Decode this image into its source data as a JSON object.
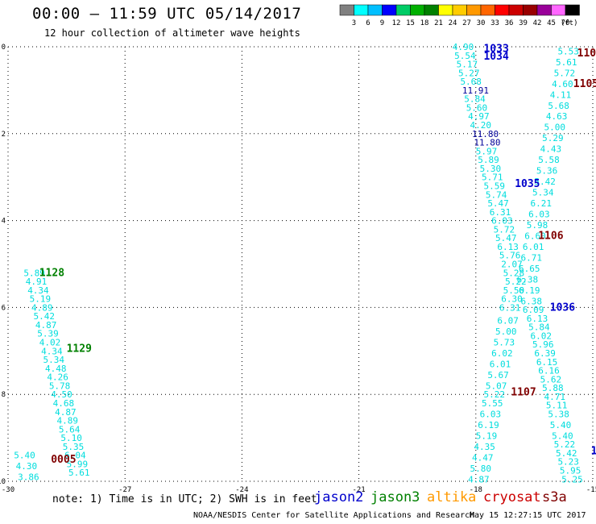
{
  "header": {
    "title": "00:00 – 11:59 UTC 05/14/2017",
    "subtitle": "12 hour collection of altimeter wave heights"
  },
  "legend_scale": {
    "ticks": [
      "3",
      "6",
      "9",
      "12",
      "15",
      "18",
      "21",
      "24",
      "27",
      "30",
      "33",
      "36",
      "39",
      "42",
      "45",
      "70"
    ],
    "unit": "(ft)",
    "colors": [
      "#808080",
      "#00ffff",
      "#00bfff",
      "#0000ff",
      "#00cc66",
      "#00b000",
      "#008000",
      "#ffff00",
      "#ffcc00",
      "#ff9900",
      "#ff6600",
      "#ff0000",
      "#cc0000",
      "#990000",
      "#990099",
      "#ff66ff",
      "#000000"
    ]
  },
  "footer": {
    "note": "note:  1) Time is in UTC;  2) SWH is in feet",
    "credit": "NOAA/NESDIS Center for Satellite Applications and Research",
    "timestamp": "May 15 12:27:15 UTC 2017"
  },
  "satellites": [
    {
      "name": "jason2",
      "color": "#0000cc"
    },
    {
      "name": "jason3",
      "color": "#008000"
    },
    {
      "name": "altika",
      "color": "#ff9900"
    },
    {
      "name": "cryosat",
      "color": "#cc0000"
    },
    {
      "name": "s3a",
      "color": "#800000"
    }
  ],
  "chart_data": {
    "type": "scatter",
    "xlim": [
      -30,
      -15
    ],
    "ylim": [
      -10,
      0
    ],
    "x_ticks": [
      "-30",
      "-27",
      "-24",
      "-21",
      "-18",
      "-15"
    ],
    "y_ticks": [
      "0",
      "-2",
      "-4",
      "-6",
      "-8",
      "-10"
    ],
    "grid": true,
    "value_color": "#00dddd",
    "value_color_large": "#000099",
    "track_labels": [
      {
        "text": "1033",
        "x": -17.8,
        "y": -0.05,
        "color": "#0000cc"
      },
      {
        "text": "1034",
        "x": -17.8,
        "y": -0.22,
        "color": "#0000cc"
      },
      {
        "text": "1035",
        "x": -17.0,
        "y": -3.15,
        "color": "#0000cc"
      },
      {
        "text": "1036",
        "x": -16.1,
        "y": -6.0,
        "color": "#0000cc"
      },
      {
        "text": "110",
        "x": -15.4,
        "y": -0.15,
        "color": "#800000"
      },
      {
        "text": "1105",
        "x": -15.5,
        "y": -0.85,
        "color": "#800000"
      },
      {
        "text": "1106",
        "x": -16.4,
        "y": -4.35,
        "color": "#800000"
      },
      {
        "text": "1107",
        "x": -17.1,
        "y": -7.95,
        "color": "#800000"
      },
      {
        "text": "0005",
        "x": -28.9,
        "y": -9.5,
        "color": "#800000"
      },
      {
        "text": "1128",
        "x": -29.2,
        "y": -5.2,
        "color": "#008000"
      },
      {
        "text": "1129",
        "x": -28.5,
        "y": -6.95,
        "color": "#008000"
      },
      {
        "text": "1-",
        "x": -15.05,
        "y": -9.3,
        "color": "#0000cc"
      }
    ],
    "series": [
      {
        "values": [
          {
            "x": -18.6,
            "y": 0.0,
            "v": "4.90"
          },
          {
            "x": -18.55,
            "y": -0.2,
            "v": "5.54"
          },
          {
            "x": -18.5,
            "y": -0.4,
            "v": "5.17"
          },
          {
            "x": -18.45,
            "y": -0.6,
            "v": "5.27"
          },
          {
            "x": -18.4,
            "y": -0.8,
            "v": "5.68"
          },
          {
            "x": -18.35,
            "y": -1.0,
            "v": "11.91"
          },
          {
            "x": -18.3,
            "y": -1.2,
            "v": "5.84"
          },
          {
            "x": -18.25,
            "y": -1.4,
            "v": "5.60"
          },
          {
            "x": -18.2,
            "y": -1.6,
            "v": "4.97"
          },
          {
            "x": -18.15,
            "y": -1.8,
            "v": "4.20"
          },
          {
            "x": -18.1,
            "y": -2.0,
            "v": "11.80"
          },
          {
            "x": -18.05,
            "y": -2.2,
            "v": "11.80"
          },
          {
            "x": -18.0,
            "y": -2.4,
            "v": "5.97"
          },
          {
            "x": -17.95,
            "y": -2.6,
            "v": "5.89"
          },
          {
            "x": -17.9,
            "y": -2.8,
            "v": "5.30"
          },
          {
            "x": -17.85,
            "y": -3.0,
            "v": "5.71"
          },
          {
            "x": -17.8,
            "y": -3.2,
            "v": "5.59"
          },
          {
            "x": -17.75,
            "y": -3.4,
            "v": "5.74"
          },
          {
            "x": -17.7,
            "y": -3.6,
            "v": "5.47"
          },
          {
            "x": -17.65,
            "y": -3.8,
            "v": "6.31"
          },
          {
            "x": -17.6,
            "y": -4.0,
            "v": "6.03"
          },
          {
            "x": -17.55,
            "y": -4.2,
            "v": "5.72"
          },
          {
            "x": -17.5,
            "y": -4.4,
            "v": "5.47"
          },
          {
            "x": -17.45,
            "y": -4.6,
            "v": "6.13"
          },
          {
            "x": -17.4,
            "y": -4.8,
            "v": "5.76"
          },
          {
            "x": -17.35,
            "y": -5.0,
            "v": "2.07"
          },
          {
            "x": -17.3,
            "y": -5.2,
            "v": "5.28"
          },
          {
            "x": -17.25,
            "y": -5.4,
            "v": "5.22"
          },
          {
            "x": -17.3,
            "y": -5.6,
            "v": "5.50"
          },
          {
            "x": -17.35,
            "y": -5.8,
            "v": "6.30"
          },
          {
            "x": -17.4,
            "y": -6.0,
            "v": "6.31"
          },
          {
            "x": -17.45,
            "y": -6.3,
            "v": "6.07"
          },
          {
            "x": -17.5,
            "y": -6.55,
            "v": "5.00"
          },
          {
            "x": -17.55,
            "y": -6.8,
            "v": "5.73"
          },
          {
            "x": -17.6,
            "y": -7.05,
            "v": "6.02"
          },
          {
            "x": -17.65,
            "y": -7.3,
            "v": "6.01"
          },
          {
            "x": -17.7,
            "y": -7.55,
            "v": "5.67"
          },
          {
            "x": -17.75,
            "y": -7.8,
            "v": "5.07"
          },
          {
            "x": -17.8,
            "y": -8.0,
            "v": "5.22"
          },
          {
            "x": -17.85,
            "y": -8.2,
            "v": "5.55"
          },
          {
            "x": -17.9,
            "y": -8.45,
            "v": "6.03"
          },
          {
            "x": -17.95,
            "y": -8.7,
            "v": "6.19"
          },
          {
            "x": -18.0,
            "y": -8.95,
            "v": "5.19"
          },
          {
            "x": -18.05,
            "y": -9.2,
            "v": "4.35"
          },
          {
            "x": -18.1,
            "y": -9.45,
            "v": "4.47"
          },
          {
            "x": -18.15,
            "y": -9.7,
            "v": "5.80"
          },
          {
            "x": -18.2,
            "y": -9.95,
            "v": "4.87"
          }
        ]
      },
      {
        "values": [
          {
            "x": -15.9,
            "y": -0.1,
            "v": "5.53"
          },
          {
            "x": -15.95,
            "y": -0.35,
            "v": "5.61"
          },
          {
            "x": -16.0,
            "y": -0.6,
            "v": "5.72"
          },
          {
            "x": -16.05,
            "y": -0.85,
            "v": "4.60"
          },
          {
            "x": -16.1,
            "y": -1.1,
            "v": "4.11"
          },
          {
            "x": -16.15,
            "y": -1.35,
            "v": "5.68"
          },
          {
            "x": -16.2,
            "y": -1.6,
            "v": "4.63"
          },
          {
            "x": -16.25,
            "y": -1.85,
            "v": "5.00"
          },
          {
            "x": -16.3,
            "y": -2.1,
            "v": "5.29"
          },
          {
            "x": -16.35,
            "y": -2.35,
            "v": "4.43"
          },
          {
            "x": -16.4,
            "y": -2.6,
            "v": "5.58"
          },
          {
            "x": -16.45,
            "y": -2.85,
            "v": "5.36"
          },
          {
            "x": -16.5,
            "y": -3.1,
            "v": "5.42"
          },
          {
            "x": -16.55,
            "y": -3.35,
            "v": "5.34"
          },
          {
            "x": -16.6,
            "y": -3.6,
            "v": "6.21"
          },
          {
            "x": -16.65,
            "y": -3.85,
            "v": "6.03"
          },
          {
            "x": -16.7,
            "y": -4.1,
            "v": "5.98"
          },
          {
            "x": -16.75,
            "y": -4.35,
            "v": "6.60"
          },
          {
            "x": -16.8,
            "y": -4.6,
            "v": "6.01"
          },
          {
            "x": -16.85,
            "y": -4.85,
            "v": "6.71"
          },
          {
            "x": -16.9,
            "y": -5.1,
            "v": "6.65"
          },
          {
            "x": -16.95,
            "y": -5.35,
            "v": "6.38"
          },
          {
            "x": -16.9,
            "y": -5.6,
            "v": "6.19"
          },
          {
            "x": -16.85,
            "y": -5.85,
            "v": "6.38"
          },
          {
            "x": -16.8,
            "y": -6.05,
            "v": "6.09"
          },
          {
            "x": -16.7,
            "y": -6.25,
            "v": "6.13"
          },
          {
            "x": -16.65,
            "y": -6.45,
            "v": "5.84"
          },
          {
            "x": -16.6,
            "y": -6.65,
            "v": "6.02"
          },
          {
            "x": -16.55,
            "y": -6.85,
            "v": "5.96"
          },
          {
            "x": -16.5,
            "y": -7.05,
            "v": "6.39"
          },
          {
            "x": -16.45,
            "y": -7.25,
            "v": "6.15"
          },
          {
            "x": -16.4,
            "y": -7.45,
            "v": "6.16"
          },
          {
            "x": -16.35,
            "y": -7.65,
            "v": "5.62"
          },
          {
            "x": -16.3,
            "y": -7.85,
            "v": "5.88"
          },
          {
            "x": -16.25,
            "y": -8.05,
            "v": "4.71"
          },
          {
            "x": -16.2,
            "y": -8.25,
            "v": "5.11"
          },
          {
            "x": -16.15,
            "y": -8.45,
            "v": "5.38"
          },
          {
            "x": -16.1,
            "y": -8.7,
            "v": "5.40"
          },
          {
            "x": -16.05,
            "y": -8.95,
            "v": "5.40"
          },
          {
            "x": -16.0,
            "y": -9.15,
            "v": "5.22"
          },
          {
            "x": -15.95,
            "y": -9.35,
            "v": "5.42"
          },
          {
            "x": -15.9,
            "y": -9.55,
            "v": "5.23"
          },
          {
            "x": -15.85,
            "y": -9.75,
            "v": "5.95"
          },
          {
            "x": -15.8,
            "y": -9.95,
            "v": "5.25"
          }
        ]
      },
      {
        "values": [
          {
            "x": -29.6,
            "y": -5.2,
            "v": "5.89"
          },
          {
            "x": -29.55,
            "y": -5.4,
            "v": "4.91"
          },
          {
            "x": -29.5,
            "y": -5.6,
            "v": "4.34"
          },
          {
            "x": -29.45,
            "y": -5.8,
            "v": "5.19"
          },
          {
            "x": -29.4,
            "y": -6.0,
            "v": "4.89"
          },
          {
            "x": -29.35,
            "y": -6.2,
            "v": "5.42"
          },
          {
            "x": -29.3,
            "y": -6.4,
            "v": "4.87"
          },
          {
            "x": -29.25,
            "y": -6.6,
            "v": "5.39"
          },
          {
            "x": -29.2,
            "y": -6.8,
            "v": "4.02"
          },
          {
            "x": -29.15,
            "y": -7.0,
            "v": "4.34"
          },
          {
            "x": -29.1,
            "y": -7.2,
            "v": "5.34"
          },
          {
            "x": -29.05,
            "y": -7.4,
            "v": "4.48"
          },
          {
            "x": -29.0,
            "y": -7.6,
            "v": "4.26"
          },
          {
            "x": -28.95,
            "y": -7.8,
            "v": "5.78"
          },
          {
            "x": -28.9,
            "y": -8.0,
            "v": "4.50"
          },
          {
            "x": -28.85,
            "y": -8.2,
            "v": "4.68"
          },
          {
            "x": -28.8,
            "y": -8.4,
            "v": "4.87"
          },
          {
            "x": -28.75,
            "y": -8.6,
            "v": "4.89"
          },
          {
            "x": -28.7,
            "y": -8.8,
            "v": "5.64"
          },
          {
            "x": -28.65,
            "y": -9.0,
            "v": "5.10"
          },
          {
            "x": -28.6,
            "y": -9.2,
            "v": "5.35"
          },
          {
            "x": -28.55,
            "y": -9.4,
            "v": "6.04"
          },
          {
            "x": -28.5,
            "y": -9.6,
            "v": "5.99"
          },
          {
            "x": -28.45,
            "y": -9.8,
            "v": "5.61"
          },
          {
            "x": -29.85,
            "y": -9.4,
            "v": "5.40"
          },
          {
            "x": -29.8,
            "y": -9.65,
            "v": "4.30"
          },
          {
            "x": -29.75,
            "y": -9.9,
            "v": "3.86"
          }
        ]
      }
    ]
  }
}
